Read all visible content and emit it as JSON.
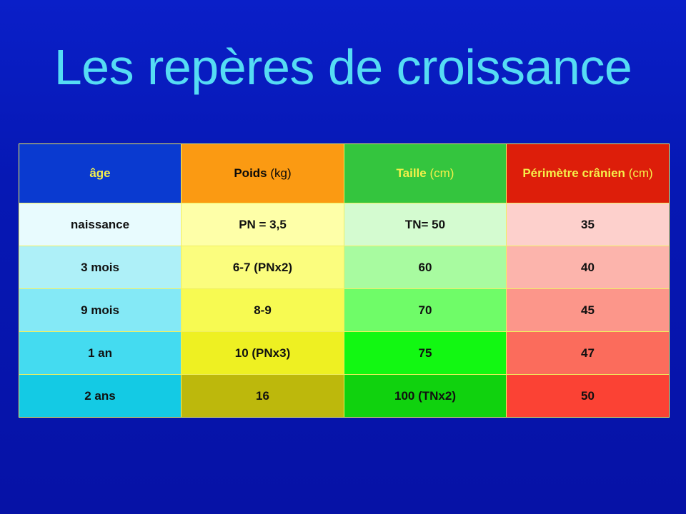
{
  "title": "Les repères de croissance",
  "table": {
    "headers": [
      {
        "main": "âge",
        "unit": ""
      },
      {
        "main": "Poids",
        "unit": "(kg)"
      },
      {
        "main": "Taille",
        "unit": "(cm)"
      },
      {
        "main": "Périmètre crânien",
        "unit": "(cm)"
      }
    ],
    "rows": [
      [
        "naissance",
        "PN = 3,5",
        "TN= 50",
        "35"
      ],
      [
        "3 mois",
        "6-7 (PNx2)",
        "60",
        "40"
      ],
      [
        "9 mois",
        "8-9",
        "70",
        "45"
      ],
      [
        "1 an",
        "10 (PNx3)",
        "75",
        "47"
      ],
      [
        "2 ans",
        "16",
        "100 (TNx2)",
        "50"
      ]
    ]
  },
  "colors": {
    "background": "#0a1fc8",
    "title": "#55dcf4",
    "header_age": "#0a3ad0",
    "header_poids": "#fb9a12",
    "header_taille": "#34c53e",
    "header_perimetre": "#dd1e0a",
    "header_text_yellow": "#f5f04a"
  }
}
